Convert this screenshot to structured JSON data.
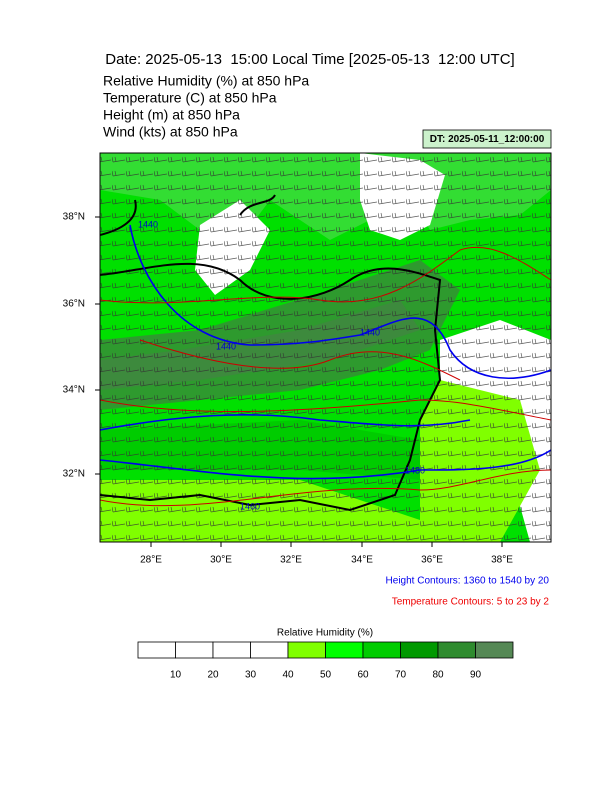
{
  "title": "Date: 2025-05-13  15:00 Local Time [2025-05-13  12:00 UTC]",
  "fields": [
    "Relative Humidity   (%)     at   850 hPa",
    "Temperature   (C)     at   850 hPa",
    "Height   (m)     at   850 hPa",
    "Wind   (kts)     at   850 hPa"
  ],
  "dt_label": "DT: 2025-05-11_12:00:00",
  "map": {
    "lon_labels": [
      "28°E",
      "30°E",
      "32°E",
      "34°E",
      "36°E",
      "38°E"
    ],
    "lat_labels": [
      "38°N",
      "36°N",
      "34°N",
      "32°N"
    ],
    "contour_labels": [
      "1440",
      "1440",
      "1440",
      "1480",
      "1460"
    ]
  },
  "notes": [
    "Height Contours: 1360 to 1540 by 20",
    "Temperature Contours: 5 to 23 by 2"
  ],
  "colorbar": {
    "title": "Relative Humidity  (%)",
    "colors": [
      "#ffffff",
      "#ffffff",
      "#ffffff",
      "#ffffff",
      "#80ff00",
      "#00ff00",
      "#00cc00",
      "#009900",
      "#2e8b2e",
      "#558855"
    ],
    "ticks": [
      10,
      20,
      30,
      40,
      50,
      60,
      70,
      80,
      90
    ]
  }
}
